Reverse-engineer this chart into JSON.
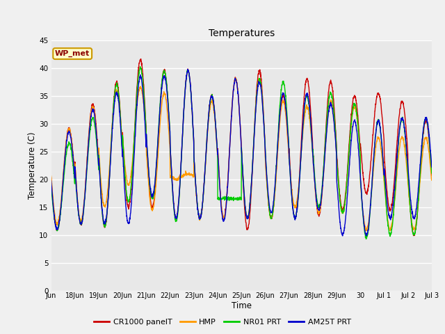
{
  "title": "Temperatures",
  "xlabel": "Time",
  "ylabel": "Temperature (C)",
  "ylim": [
    0,
    45
  ],
  "yticks": [
    0,
    5,
    10,
    15,
    20,
    25,
    30,
    35,
    40,
    45
  ],
  "background_color": "#f0f0f0",
  "plot_bg_outer": "#e0e0e0",
  "plot_bg_inner": "#e8e8e8",
  "grid_color": "#ffffff",
  "series": [
    "CR1000 panelT",
    "HMP",
    "NR01 PRT",
    "AM25T PRT"
  ],
  "colors": [
    "#cc0000",
    "#ff9900",
    "#00cc00",
    "#0000cc"
  ],
  "linewidth": 1.0,
  "annotation_text": "WP_met",
  "num_days": 16,
  "x_tick_labels": [
    "Jun",
    "18Jun",
    "19Jun",
    "20Jun",
    "21Jun",
    "22Jun",
    "23Jun",
    "24Jun",
    "25Jun",
    "26Jun",
    "27Jun",
    "28Jun",
    "29Jun",
    "30",
    "Jul 1",
    "Jul 2",
    "Jul 3"
  ],
  "pts_per_day": 144,
  "cr1000_peaks": [
    11.0,
    29.0,
    12.0,
    33.5,
    11.5,
    37.5,
    15.0,
    41.5,
    15.0,
    39.5,
    13.0,
    39.5,
    13.0,
    35.0,
    13.0,
    38.0,
    11.0,
    39.5,
    13.0,
    35.0,
    13.0,
    38.0,
    13.5,
    37.5,
    14.5,
    35.0,
    17.5,
    35.5,
    14.5,
    34.0,
    10.0,
    30.5
  ],
  "hmp_peaks": [
    12.0,
    29.0,
    12.5,
    33.0,
    15.0,
    36.0,
    19.0,
    36.5,
    14.5,
    35.5,
    20.0,
    21.0,
    13.0,
    34.0,
    13.0,
    38.0,
    13.0,
    38.0,
    13.0,
    34.0,
    15.0,
    33.0,
    14.0,
    34.0,
    14.0,
    33.0,
    11.0,
    27.5,
    11.0,
    27.5,
    11.0,
    27.5
  ],
  "nr01_peaks": [
    11.0,
    26.5,
    12.0,
    31.0,
    11.5,
    37.0,
    16.0,
    40.0,
    16.5,
    39.5,
    12.5,
    39.5,
    13.0,
    35.0,
    16.5,
    16.5,
    13.0,
    38.0,
    13.0,
    37.5,
    13.0,
    35.0,
    15.0,
    35.5,
    14.0,
    33.5,
    9.5,
    30.5,
    10.0,
    31.0,
    10.0,
    31.0
  ],
  "am25_peaks": [
    11.0,
    28.5,
    12.0,
    32.5,
    12.0,
    35.5,
    12.0,
    38.5,
    17.0,
    38.5,
    13.0,
    39.5,
    13.0,
    35.0,
    12.5,
    38.0,
    13.0,
    37.5,
    14.0,
    35.5,
    13.0,
    35.5,
    14.5,
    33.5,
    10.0,
    30.5,
    10.0,
    30.5,
    13.0,
    31.0,
    13.0,
    31.0
  ]
}
